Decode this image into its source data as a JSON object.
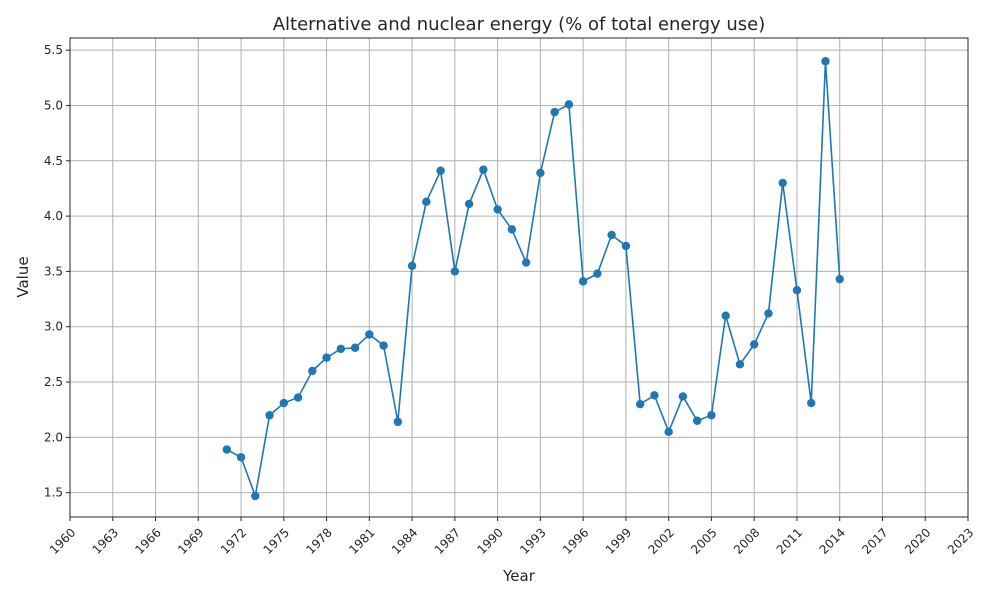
{
  "chart_data": {
    "type": "line",
    "title": "Alternative and nuclear energy (% of total energy use)",
    "xlabel": "Year",
    "ylabel": "Value",
    "xlim": [
      1960,
      2023
    ],
    "ylim": [
      1.28,
      5.61
    ],
    "grid": true,
    "x_ticks": [
      1960,
      1963,
      1966,
      1969,
      1972,
      1975,
      1978,
      1981,
      1984,
      1987,
      1990,
      1993,
      1996,
      1999,
      2002,
      2005,
      2008,
      2011,
      2014,
      2017,
      2020,
      2023
    ],
    "y_ticks": [
      1.5,
      2.0,
      2.5,
      3.0,
      3.5,
      4.0,
      4.5,
      5.0,
      5.5
    ],
    "series": [
      {
        "color": "#1f77b4",
        "x": [
          1971,
          1972,
          1973,
          1974,
          1975,
          1976,
          1977,
          1978,
          1979,
          1980,
          1981,
          1982,
          1983,
          1984,
          1985,
          1986,
          1987,
          1988,
          1989,
          1990,
          1991,
          1992,
          1993,
          1994,
          1995,
          1996,
          1997,
          1998,
          1999,
          2000,
          2001,
          2002,
          2003,
          2004,
          2005,
          2006,
          2007,
          2008,
          2009,
          2010,
          2011,
          2012,
          2013,
          2014
        ],
        "y": [
          1.89,
          1.82,
          1.47,
          2.2,
          2.31,
          2.36,
          2.6,
          2.72,
          2.8,
          2.81,
          2.93,
          2.83,
          2.14,
          3.55,
          4.13,
          4.41,
          3.5,
          4.11,
          4.42,
          4.06,
          3.88,
          3.58,
          4.39,
          4.94,
          5.01,
          3.41,
          3.48,
          3.83,
          3.73,
          2.3,
          2.38,
          2.05,
          2.37,
          2.15,
          2.2,
          3.1,
          2.66,
          2.84,
          3.12,
          4.3,
          3.33,
          2.31,
          5.4,
          3.43
        ]
      }
    ]
  }
}
